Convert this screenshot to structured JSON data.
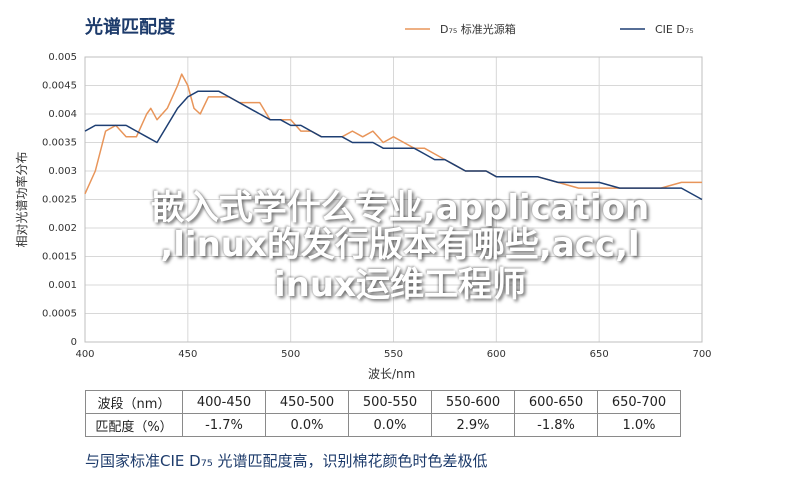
{
  "chart_data": {
    "type": "line",
    "title": "光谱匹配度",
    "xlabel": "波长/nm",
    "ylabel": "相对光谱功率分布",
    "xlim": [
      400,
      700
    ],
    "ylim": [
      0,
      0.005
    ],
    "xticks": [
      400,
      450,
      500,
      550,
      600,
      650,
      700
    ],
    "yticks": [
      "0",
      "0.0005",
      "0.001",
      "0.0015",
      "0.002",
      "0.0025",
      "0.003",
      "0.0035",
      "0.004",
      "0.0045",
      "0.005"
    ],
    "grid": true,
    "legend_position": "top-right",
    "series": [
      {
        "name": "D₇₅ 标准光源箱",
        "color": "#e8955a",
        "points": [
          [
            400,
            0.0026
          ],
          [
            405,
            0.003
          ],
          [
            410,
            0.0037
          ],
          [
            415,
            0.0038
          ],
          [
            420,
            0.0036
          ],
          [
            425,
            0.0036
          ],
          [
            430,
            0.004
          ],
          [
            432,
            0.0041
          ],
          [
            435,
            0.0039
          ],
          [
            440,
            0.0041
          ],
          [
            445,
            0.0045
          ],
          [
            447,
            0.0047
          ],
          [
            450,
            0.0045
          ],
          [
            453,
            0.0041
          ],
          [
            456,
            0.004
          ],
          [
            460,
            0.0043
          ],
          [
            465,
            0.0043
          ],
          [
            470,
            0.0043
          ],
          [
            475,
            0.0042
          ],
          [
            480,
            0.0042
          ],
          [
            485,
            0.0042
          ],
          [
            490,
            0.0039
          ],
          [
            495,
            0.0039
          ],
          [
            500,
            0.0039
          ],
          [
            505,
            0.0037
          ],
          [
            510,
            0.0037
          ],
          [
            515,
            0.0036
          ],
          [
            520,
            0.0036
          ],
          [
            525,
            0.0036
          ],
          [
            530,
            0.0037
          ],
          [
            535,
            0.0036
          ],
          [
            540,
            0.0037
          ],
          [
            545,
            0.0035
          ],
          [
            550,
            0.0036
          ],
          [
            555,
            0.0035
          ],
          [
            560,
            0.0034
          ],
          [
            565,
            0.0034
          ],
          [
            570,
            0.0033
          ],
          [
            575,
            0.0032
          ],
          [
            580,
            0.0031
          ],
          [
            585,
            0.003
          ],
          [
            590,
            0.003
          ],
          [
            595,
            0.003
          ],
          [
            600,
            0.0029
          ],
          [
            610,
            0.0029
          ],
          [
            620,
            0.0029
          ],
          [
            630,
            0.0028
          ],
          [
            640,
            0.0027
          ],
          [
            650,
            0.0027
          ],
          [
            660,
            0.0027
          ],
          [
            670,
            0.0027
          ],
          [
            680,
            0.0027
          ],
          [
            690,
            0.0028
          ],
          [
            700,
            0.0028
          ]
        ]
      },
      {
        "name": "CIE D₇₅",
        "color": "#1e3f73",
        "points": [
          [
            400,
            0.0037
          ],
          [
            405,
            0.0038
          ],
          [
            410,
            0.0038
          ],
          [
            415,
            0.0038
          ],
          [
            420,
            0.0038
          ],
          [
            425,
            0.0037
          ],
          [
            430,
            0.0036
          ],
          [
            435,
            0.0035
          ],
          [
            440,
            0.0038
          ],
          [
            445,
            0.0041
          ],
          [
            450,
            0.0043
          ],
          [
            455,
            0.0044
          ],
          [
            460,
            0.0044
          ],
          [
            465,
            0.0044
          ],
          [
            470,
            0.0043
          ],
          [
            475,
            0.0042
          ],
          [
            480,
            0.0041
          ],
          [
            485,
            0.004
          ],
          [
            490,
            0.0039
          ],
          [
            495,
            0.0039
          ],
          [
            500,
            0.0038
          ],
          [
            505,
            0.0038
          ],
          [
            510,
            0.0037
          ],
          [
            515,
            0.0036
          ],
          [
            520,
            0.0036
          ],
          [
            525,
            0.0036
          ],
          [
            530,
            0.0035
          ],
          [
            535,
            0.0035
          ],
          [
            540,
            0.0035
          ],
          [
            545,
            0.0034
          ],
          [
            550,
            0.0034
          ],
          [
            555,
            0.0034
          ],
          [
            560,
            0.0034
          ],
          [
            565,
            0.0033
          ],
          [
            570,
            0.0032
          ],
          [
            575,
            0.0032
          ],
          [
            580,
            0.0031
          ],
          [
            585,
            0.003
          ],
          [
            590,
            0.003
          ],
          [
            595,
            0.003
          ],
          [
            600,
            0.0029
          ],
          [
            610,
            0.0029
          ],
          [
            620,
            0.0029
          ],
          [
            630,
            0.0028
          ],
          [
            640,
            0.0028
          ],
          [
            650,
            0.0028
          ],
          [
            660,
            0.0027
          ],
          [
            670,
            0.0027
          ],
          [
            680,
            0.0027
          ],
          [
            690,
            0.0027
          ],
          [
            700,
            0.0025
          ]
        ]
      }
    ]
  },
  "overlay": {
    "line1": "嵌入式学什么专业,application",
    "line2": ",linux的发行版本有哪些,acc,l",
    "line3": "inux运维工程师"
  },
  "table": {
    "header_row": [
      "波段（nm）",
      "400-450",
      "450-500",
      "500-550",
      "550-600",
      "600-650",
      "650-700"
    ],
    "value_row": [
      "匹配度（%）",
      "-1.7%",
      "0.0%",
      "0.0%",
      "2.9%",
      "-1.8%",
      "1.0%"
    ]
  },
  "footer": "与国家标准CIE D₇₅ 光谱匹配度高，识别棉花颜色时色差极低"
}
